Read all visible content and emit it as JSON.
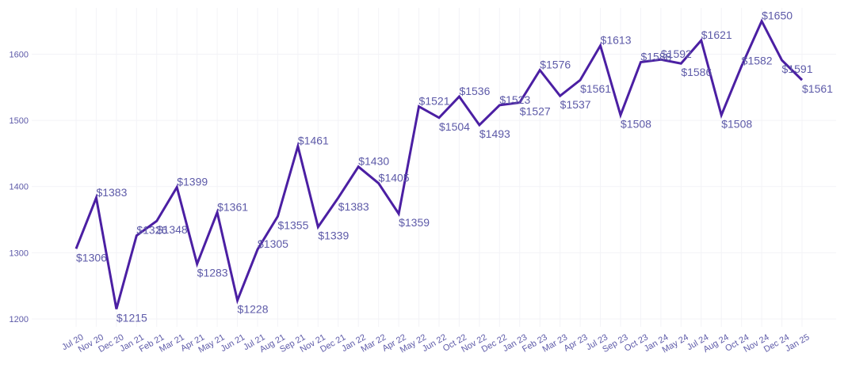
{
  "chart_data": {
    "type": "line",
    "title": "",
    "xlabel": "",
    "ylabel": "",
    "ylim": [
      1188,
      1670
    ],
    "y_ticks": [
      1200,
      1300,
      1400,
      1500,
      1600
    ],
    "grid": true,
    "legend": "none",
    "colors": {
      "line": "#4b1fa3",
      "labels": "#5d5aa8",
      "grid": "#f3f3f7"
    },
    "categories": [
      "Jul 20",
      "Nov 20",
      "Dec 20",
      "Jan 21",
      "Feb 21",
      "Mar 21",
      "Apr 21",
      "May 21",
      "Jun 21",
      "Jul 21",
      "Aug 21",
      "Sep 21",
      "Nov 21",
      "Dec 21",
      "Jan 22",
      "Mar 22",
      "Apr 22",
      "May 22",
      "Jun 22",
      "Oct 22",
      "Nov 22",
      "Dec 22",
      "Jan 23",
      "Feb 23",
      "Mar 23",
      "Apr 23",
      "Jul 23",
      "Sep 23",
      "Oct 23",
      "Jan 24",
      "May 24",
      "Jul 24",
      "Aug 24",
      "Oct 24",
      "Nov 24",
      "Dec 24",
      "Jan 25"
    ],
    "values": [
      1306,
      1383,
      1215,
      1326,
      1348,
      1399,
      1283,
      1361,
      1228,
      1305,
      1355,
      1461,
      1339,
      1383,
      1430,
      1405,
      1359,
      1521,
      1504,
      1536,
      1493,
      1523,
      1527,
      1576,
      1537,
      1561,
      1613,
      1508,
      1588,
      1592,
      1586,
      1621,
      1508,
      1582,
      1650,
      1591,
      1561
    ],
    "value_labels": [
      "$1306",
      "$1383",
      "$1215",
      "$1326",
      "$1348",
      "$1399",
      "$1283",
      "$1361",
      "$1228",
      "$1305",
      "$1355",
      "$1461",
      "$1339",
      "$1383",
      "$1430",
      "$1405",
      "$1359",
      "$1521",
      "$1504",
      "$1536",
      "$1493",
      "$1523",
      "$1527",
      "$1576",
      "$1537",
      "$1561",
      "$1613",
      "$1508",
      "$1588",
      "$1592",
      "$1586",
      "$1621",
      "$1508",
      "$1582",
      "$1650",
      "$1591",
      "$1561"
    ]
  }
}
